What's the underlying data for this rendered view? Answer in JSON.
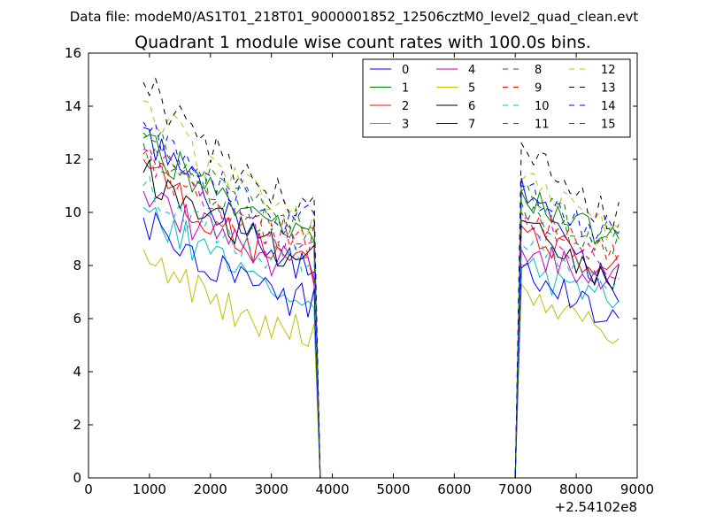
{
  "suptitle": "Data file: modeM0/AS1T01_218T01_9000001852_12506cztM0_level2_quad_clean.evt",
  "chart_data": {
    "type": "line",
    "title": "Quadrant 1 module wise count rates with 100.0s bins.",
    "xlabel": "",
    "ylabel": "",
    "xlim": [
      0,
      9000
    ],
    "ylim": [
      0,
      16
    ],
    "x_offset_label": "+2.54102e8",
    "xticks": [
      0,
      1000,
      2000,
      3000,
      4000,
      5000,
      6000,
      7000,
      8000,
      9000
    ],
    "yticks": [
      0,
      2,
      4,
      6,
      8,
      10,
      12,
      14,
      16
    ],
    "grid": false,
    "legend_position": "top-right",
    "legend_columns": 4,
    "segment_1_x_range": [
      900,
      3700
    ],
    "drop_to_zero_x": [
      3700,
      3800
    ],
    "zero_x_range": [
      3800,
      7000
    ],
    "rise_from_zero_x": [
      7000,
      7100
    ],
    "segment_2_x_range": [
      7100,
      8700
    ],
    "series": [
      {
        "name": "0",
        "color": "#0000ff",
        "dash": "solid",
        "start": 13.2,
        "end": 8.0,
        "start2": 11.3,
        "end2": 7.2
      },
      {
        "name": "1",
        "color": "#008000",
        "dash": "solid",
        "start": 12.8,
        "end": 9.6,
        "start2": 10.8,
        "end2": 9.0
      },
      {
        "name": "2",
        "color": "#ff0000",
        "dash": "solid",
        "start": 12.0,
        "end": 7.9,
        "start2": 9.5,
        "end2": 7.8
      },
      {
        "name": "3",
        "color": "#00bfbf",
        "dash": "solid",
        "start": 10.2,
        "end": 7.0,
        "start2": 8.0,
        "end2": 6.7
      },
      {
        "name": "4",
        "color": "#bf00bf",
        "dash": "solid",
        "start": 10.8,
        "end": 8.0,
        "start2": 8.6,
        "end2": 7.5
      },
      {
        "name": "5",
        "color": "#bfbf00",
        "dash": "solid",
        "start": 8.6,
        "end": 5.4,
        "start2": 7.3,
        "end2": 5.3
      },
      {
        "name": "6",
        "color": "#000000",
        "dash": "solid",
        "start": 11.5,
        "end": 8.3,
        "start2": 9.7,
        "end2": 7.5
      },
      {
        "name": "7",
        "color": "#0000ff",
        "dash": "solid",
        "start": 9.8,
        "end": 6.6,
        "start2": 7.9,
        "end2": 6.1
      },
      {
        "name": "8",
        "color": "#008000",
        "dash": "dashed",
        "start": 12.6,
        "end": 9.2,
        "start2": 10.4,
        "end2": 8.8
      },
      {
        "name": "9",
        "color": "#ff0000",
        "dash": "dashed",
        "start": 12.2,
        "end": 9.0,
        "start2": 10.0,
        "end2": 8.5
      },
      {
        "name": "10",
        "color": "#00bfbf",
        "dash": "dashed",
        "start": 11.0,
        "end": 8.0,
        "start2": 8.8,
        "end2": 7.5
      },
      {
        "name": "11",
        "color": "#bf00bf",
        "dash": "dashed",
        "start": 12.4,
        "end": 8.7,
        "start2": 9.8,
        "end2": 8.0
      },
      {
        "name": "12",
        "color": "#bfbf00",
        "dash": "dashed",
        "start": 14.2,
        "end": 9.8,
        "start2": 11.2,
        "end2": 9.4
      },
      {
        "name": "13",
        "color": "#000000",
        "dash": "dashed",
        "start": 14.9,
        "end": 10.3,
        "start2": 12.6,
        "end2": 9.8
      },
      {
        "name": "14",
        "color": "#0000ff",
        "dash": "dashed",
        "start": 13.4,
        "end": 9.6,
        "start2": 11.0,
        "end2": 9.2
      },
      {
        "name": "15",
        "color": "#008000",
        "dash": "dashed",
        "start": 13.0,
        "end": 9.5,
        "start2": 10.8,
        "end2": 9.0
      }
    ]
  }
}
